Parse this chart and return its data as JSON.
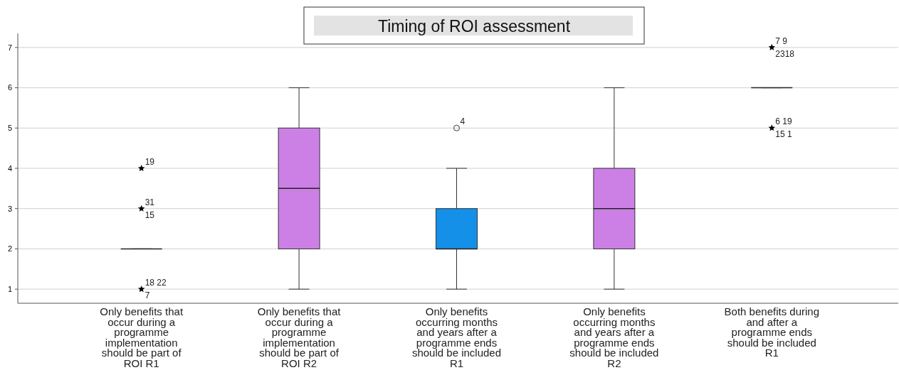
{
  "chart_data": {
    "type": "box",
    "title": "Timing of ROI assessment",
    "categories": [
      "Only benefits that occur during a programme implementation should be part of ROI R1",
      "Only benefits that occur during a programme implementation should be part of ROI R2",
      "Only benefits occurring months and years after a programme ends should be included R1",
      "Only benefits occurring months and years after a programme ends should be included R2",
      "Both benefits during and after a programme ends should be included R1"
    ],
    "boxes": [
      {
        "low": 2,
        "q1": 2,
        "median": 2,
        "q3": 2,
        "high": 2
      },
      {
        "low": 1,
        "q1": 2,
        "median": 3.5,
        "q3": 5,
        "high": 6
      },
      {
        "low": 1,
        "q1": 2,
        "median": 2,
        "q3": 3,
        "high": 4
      },
      {
        "low": 1,
        "q1": 2,
        "median": 3,
        "q3": 4,
        "high": 6
      },
      {
        "low": 6,
        "q1": 6,
        "median": 6,
        "q3": 6,
        "high": 6
      }
    ],
    "colors": [
      "#222222",
      "#cc80e6",
      "#1590e8",
      "#cc80e6",
      "#222222"
    ],
    "series": [
      {
        "type": "scatter",
        "marker": "star",
        "color": "#000000",
        "x": [
          "Only benefits that occur during a programme implementation should be part of ROI R1",
          "Only benefits that occur during a programme implementation should be part of ROI R1",
          "Only benefits that occur during a programme implementation should be part of ROI R1",
          "Both benefits during and after a programme ends should be included R1",
          "Both benefits during and after a programme ends should be included R1"
        ],
        "values": [
          4,
          3,
          1,
          7,
          5
        ]
      },
      {
        "type": "scatter",
        "marker": "circle",
        "color": "#333333",
        "x": [
          "Only benefits occurring months and years after a programme ends should be included R1"
        ],
        "values": [
          5
        ]
      }
    ],
    "annotations": [
      {
        "text": "19",
        "x": "Only benefits that occur during a programme implementation should be part of ROI R1",
        "y": 4
      },
      {
        "text": "31",
        "x": "Only benefits that occur during a programme implementation should be part of ROI R1",
        "y": 3
      },
      {
        "text": "15",
        "x": "Only benefits that occur during a programme implementation should be part of ROI R1",
        "y": 3
      },
      {
        "text": "18 22",
        "x": "Only benefits that occur during a programme implementation should be part of ROI R1",
        "y": 1
      },
      {
        "text": "7",
        "x": "Only benefits that occur during a programme implementation should be part of ROI R1",
        "y": 1
      },
      {
        "text": "4",
        "x": "Only benefits occurring months and years after a programme ends should be included R1",
        "y": 5
      },
      {
        "text": "7 9",
        "x": "Both benefits during and after a programme ends should be included R1",
        "y": 7
      },
      {
        "text": "2318",
        "x": "Both benefits during and after a programme ends should be included R1",
        "y": 7
      },
      {
        "text": "6 19",
        "x": "Both benefits during and after a programme ends should be included R1",
        "y": 5
      },
      {
        "text": "15 1",
        "x": "Both benefits during and after a programme ends should be included R1",
        "y": 5
      }
    ],
    "ylim": [
      0.65,
      7.35
    ],
    "yticks": [
      1,
      2,
      3,
      4,
      5,
      6,
      7
    ],
    "grid": "y"
  }
}
